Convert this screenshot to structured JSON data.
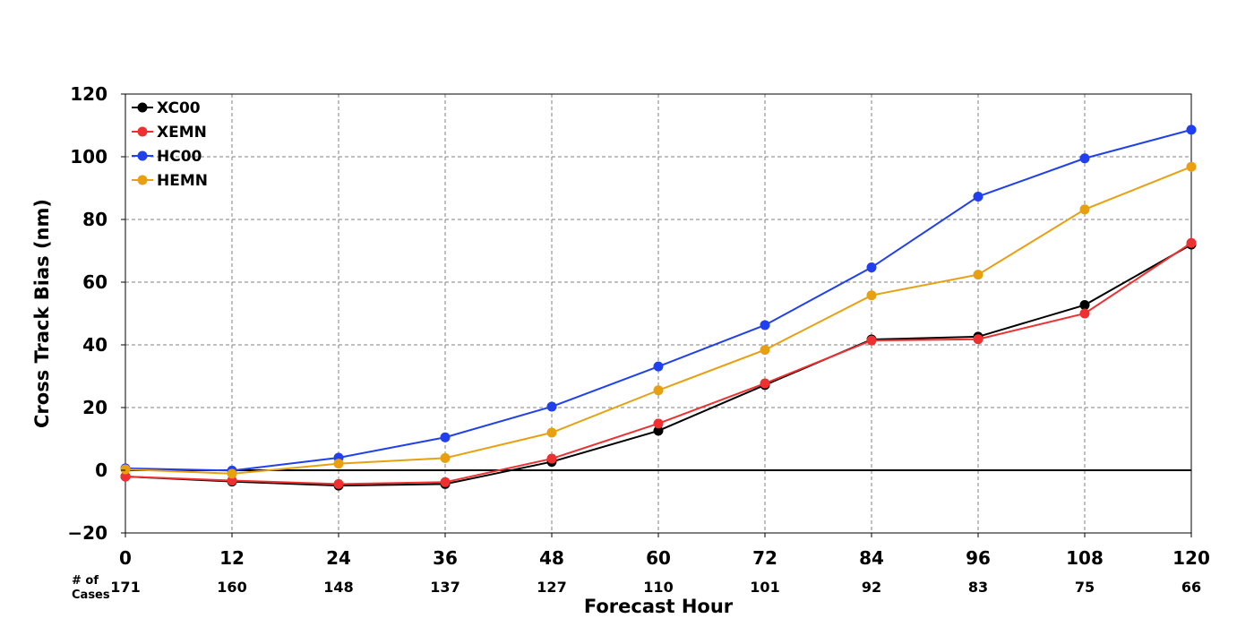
{
  "chart_data": {
    "type": "line",
    "xlabel": "Forecast Hour",
    "ylabel": "Cross Track Bias (nm)",
    "x": [
      0,
      12,
      24,
      36,
      48,
      60,
      72,
      84,
      96,
      108,
      120
    ],
    "xlim": [
      0,
      120
    ],
    "ylim": [
      -20,
      120
    ],
    "yticks": [
      -20,
      0,
      20,
      40,
      60,
      80,
      100,
      120
    ],
    "ytick_labels": [
      "−20",
      "0",
      "20",
      "40",
      "60",
      "80",
      "100",
      "120"
    ],
    "xtick_labels": [
      "0",
      "12",
      "24",
      "36",
      "48",
      "60",
      "72",
      "84",
      "96",
      "108",
      "120"
    ],
    "grid": true,
    "legend_position": "top-left",
    "cases_label_line1": "# of",
    "cases_label_line2": "Cases",
    "cases": [
      "171",
      "160",
      "148",
      "137",
      "127",
      "110",
      "101",
      "92",
      "83",
      "75",
      "66"
    ],
    "series": [
      {
        "name": "XC00",
        "color": "#000000",
        "values": [
          -2,
          -3.6,
          -4.9,
          -4.4,
          2.7,
          12.6,
          27.2,
          41.7,
          42.6,
          52.7,
          72
        ]
      },
      {
        "name": "XEMN",
        "color": "#f03030",
        "values": [
          -2,
          -3.3,
          -4.4,
          -3.8,
          3.7,
          14.9,
          27.7,
          41.4,
          41.8,
          50,
          72.5
        ]
      },
      {
        "name": "HC00",
        "color": "#2040f0",
        "values": [
          0.6,
          -0.1,
          4.0,
          10.5,
          20.3,
          33.1,
          46.3,
          64.7,
          87.3,
          99.5,
          108.6
        ]
      },
      {
        "name": "HEMN",
        "color": "#e8a010",
        "values": [
          0.3,
          -1.1,
          2.1,
          3.9,
          12.0,
          25.5,
          38.4,
          55.8,
          62.4,
          83.2,
          96.8
        ]
      }
    ]
  }
}
